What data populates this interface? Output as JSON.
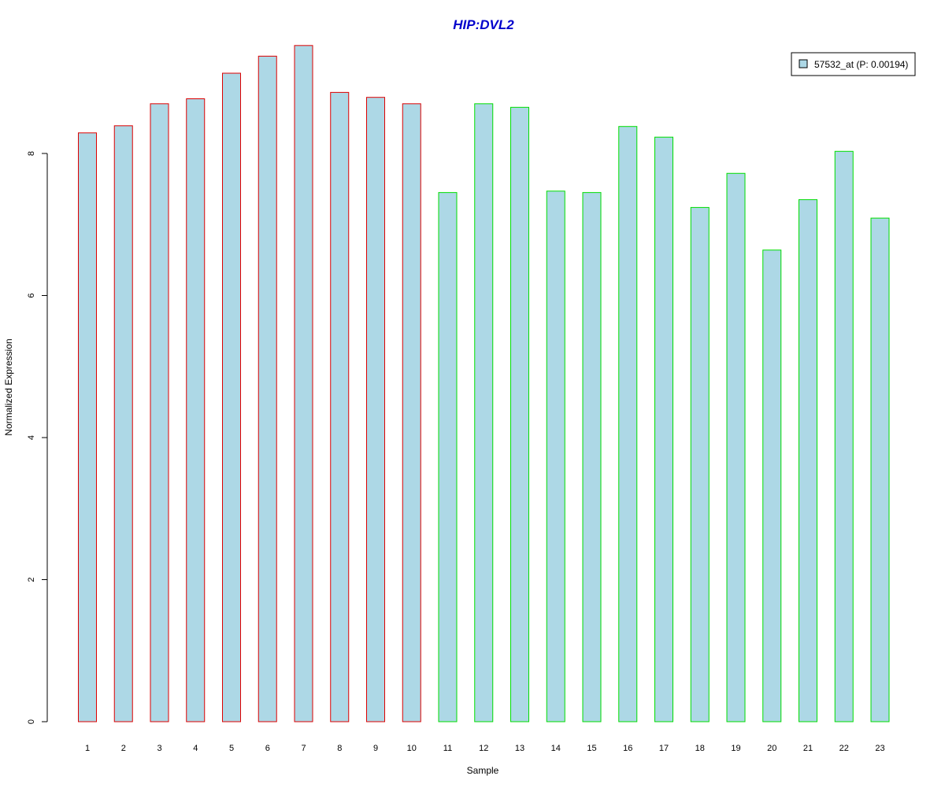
{
  "chart_data": {
    "type": "bar",
    "title": "HIP:DVL2",
    "xlabel": "Sample",
    "ylabel": "Normalized Expression",
    "categories": [
      "1",
      "2",
      "3",
      "4",
      "5",
      "6",
      "7",
      "8",
      "9",
      "10",
      "11",
      "12",
      "13",
      "14",
      "15",
      "16",
      "17",
      "18",
      "19",
      "20",
      "21",
      "22",
      "23"
    ],
    "values": [
      8.29,
      8.39,
      8.7,
      8.77,
      9.13,
      9.37,
      9.52,
      8.86,
      8.79,
      8.7,
      7.45,
      8.7,
      8.65,
      7.47,
      7.45,
      8.38,
      8.23,
      7.24,
      7.72,
      6.64,
      7.35,
      8.03,
      7.09
    ],
    "group_border_colors": [
      "#dd0000",
      "#dd0000",
      "#dd0000",
      "#dd0000",
      "#dd0000",
      "#dd0000",
      "#dd0000",
      "#dd0000",
      "#dd0000",
      "#dd0000",
      "#00dd00",
      "#00dd00",
      "#00dd00",
      "#00dd00",
      "#00dd00",
      "#00dd00",
      "#00dd00",
      "#00dd00",
      "#00dd00",
      "#00dd00",
      "#00dd00",
      "#00dd00",
      "#00dd00"
    ],
    "yticks": [
      0,
      2,
      4,
      6,
      8
    ],
    "ylim": [
      0,
      9.6
    ],
    "bar_fill": "#add8e6",
    "title_color": "#0000cc",
    "legend": {
      "label": "57532_at (P: 0.00194)",
      "position": "top-right"
    },
    "grid": false
  }
}
